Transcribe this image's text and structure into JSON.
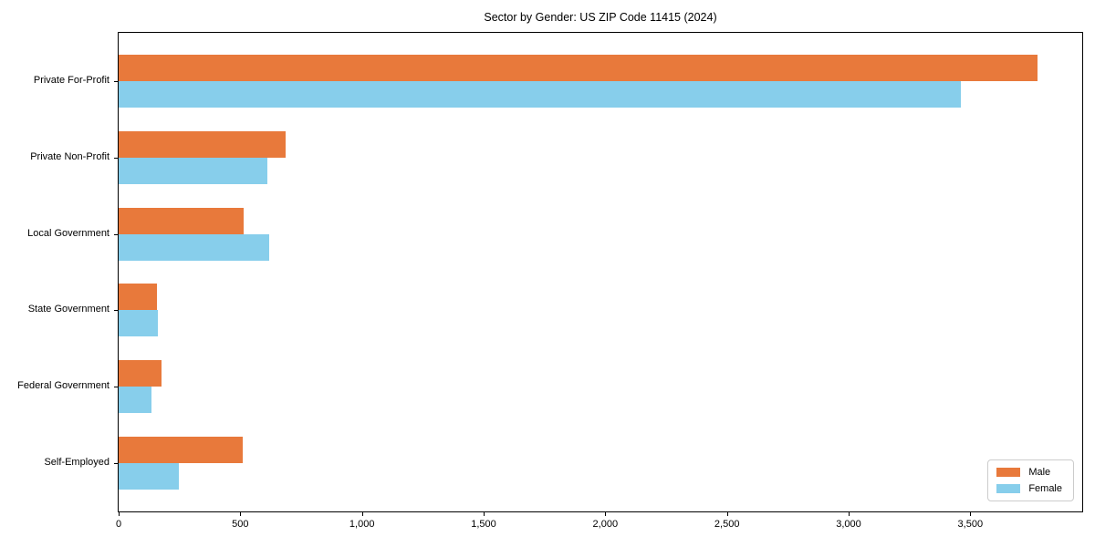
{
  "chart_data": {
    "type": "bar",
    "orientation": "horizontal",
    "title": "Sector by Gender: US ZIP Code 11415 (2024)",
    "xlabel": "",
    "ylabel": "",
    "categories": [
      "Private For-Profit",
      "Private Non-Profit",
      "Local Government",
      "State Government",
      "Federal Government",
      "Self-Employed"
    ],
    "series": [
      {
        "name": "Male",
        "color": "#e8793b",
        "values": [
          3775,
          685,
          512,
          159,
          177,
          510
        ]
      },
      {
        "name": "Female",
        "color": "#87ceeb",
        "values": [
          3460,
          610,
          620,
          162,
          134,
          248
        ]
      }
    ],
    "xlim": [
      0,
      3960
    ],
    "xticks": [
      0,
      500,
      1000,
      1500,
      2000,
      2500,
      3000,
      3500
    ],
    "xtick_labels": [
      "0",
      "500",
      "1,000",
      "1,500",
      "2,000",
      "2,500",
      "3,000",
      "3,500"
    ],
    "grid": false,
    "legend_position": "lower right",
    "colors": {
      "axis": "#000000",
      "text": "#000000",
      "legend_border": "#cccccc",
      "background": "#ffffff"
    }
  }
}
